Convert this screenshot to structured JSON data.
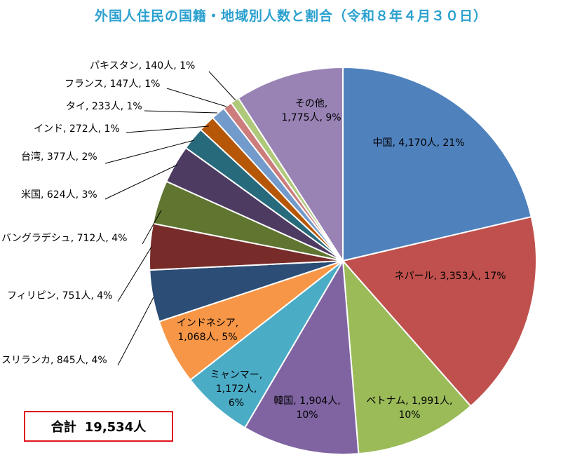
{
  "chart_data": {
    "type": "pie",
    "title": "外国人住民の国籍・地域別人数と割合（令和８年４月３０日）",
    "unit": "人",
    "slices": [
      {
        "name": "中国",
        "value": 4170,
        "percent": 21,
        "color": "#4f81bd"
      },
      {
        "name": "ネパール",
        "value": 3353,
        "percent": 17,
        "color": "#c0504d"
      },
      {
        "name": "ベトナム",
        "value": 1991,
        "percent": 10,
        "color": "#9bbb59"
      },
      {
        "name": "韓国",
        "value": 1904,
        "percent": 10,
        "color": "#8064a2"
      },
      {
        "name": "ミャンマー",
        "value": 1172,
        "percent": 6,
        "color": "#4bacc6"
      },
      {
        "name": "インドネシア",
        "value": 1068,
        "percent": 5,
        "color": "#f79646"
      },
      {
        "name": "スリランカ",
        "value": 845,
        "percent": 4,
        "color": "#2c4d75"
      },
      {
        "name": "フィリピン",
        "value": 751,
        "percent": 4,
        "color": "#772c2a"
      },
      {
        "name": "バングラデシュ",
        "value": 712,
        "percent": 4,
        "color": "#5f7530"
      },
      {
        "name": "米国",
        "value": 624,
        "percent": 3,
        "color": "#4d3b62"
      },
      {
        "name": "台湾",
        "value": 377,
        "percent": 2,
        "color": "#276a7c"
      },
      {
        "name": "インド",
        "value": 272,
        "percent": 1,
        "color": "#b65708"
      },
      {
        "name": "タイ",
        "value": 233,
        "percent": 1,
        "color": "#729aca"
      },
      {
        "name": "フランス",
        "value": 147,
        "percent": 1,
        "color": "#cd7c7c"
      },
      {
        "name": "パキスタン",
        "value": 140,
        "percent": 1,
        "color": "#afc97a"
      },
      {
        "name": "その他",
        "value": 1775,
        "percent": 9,
        "color": "#9983b5"
      }
    ]
  },
  "total": {
    "label": "合計",
    "value": "19,534人"
  }
}
